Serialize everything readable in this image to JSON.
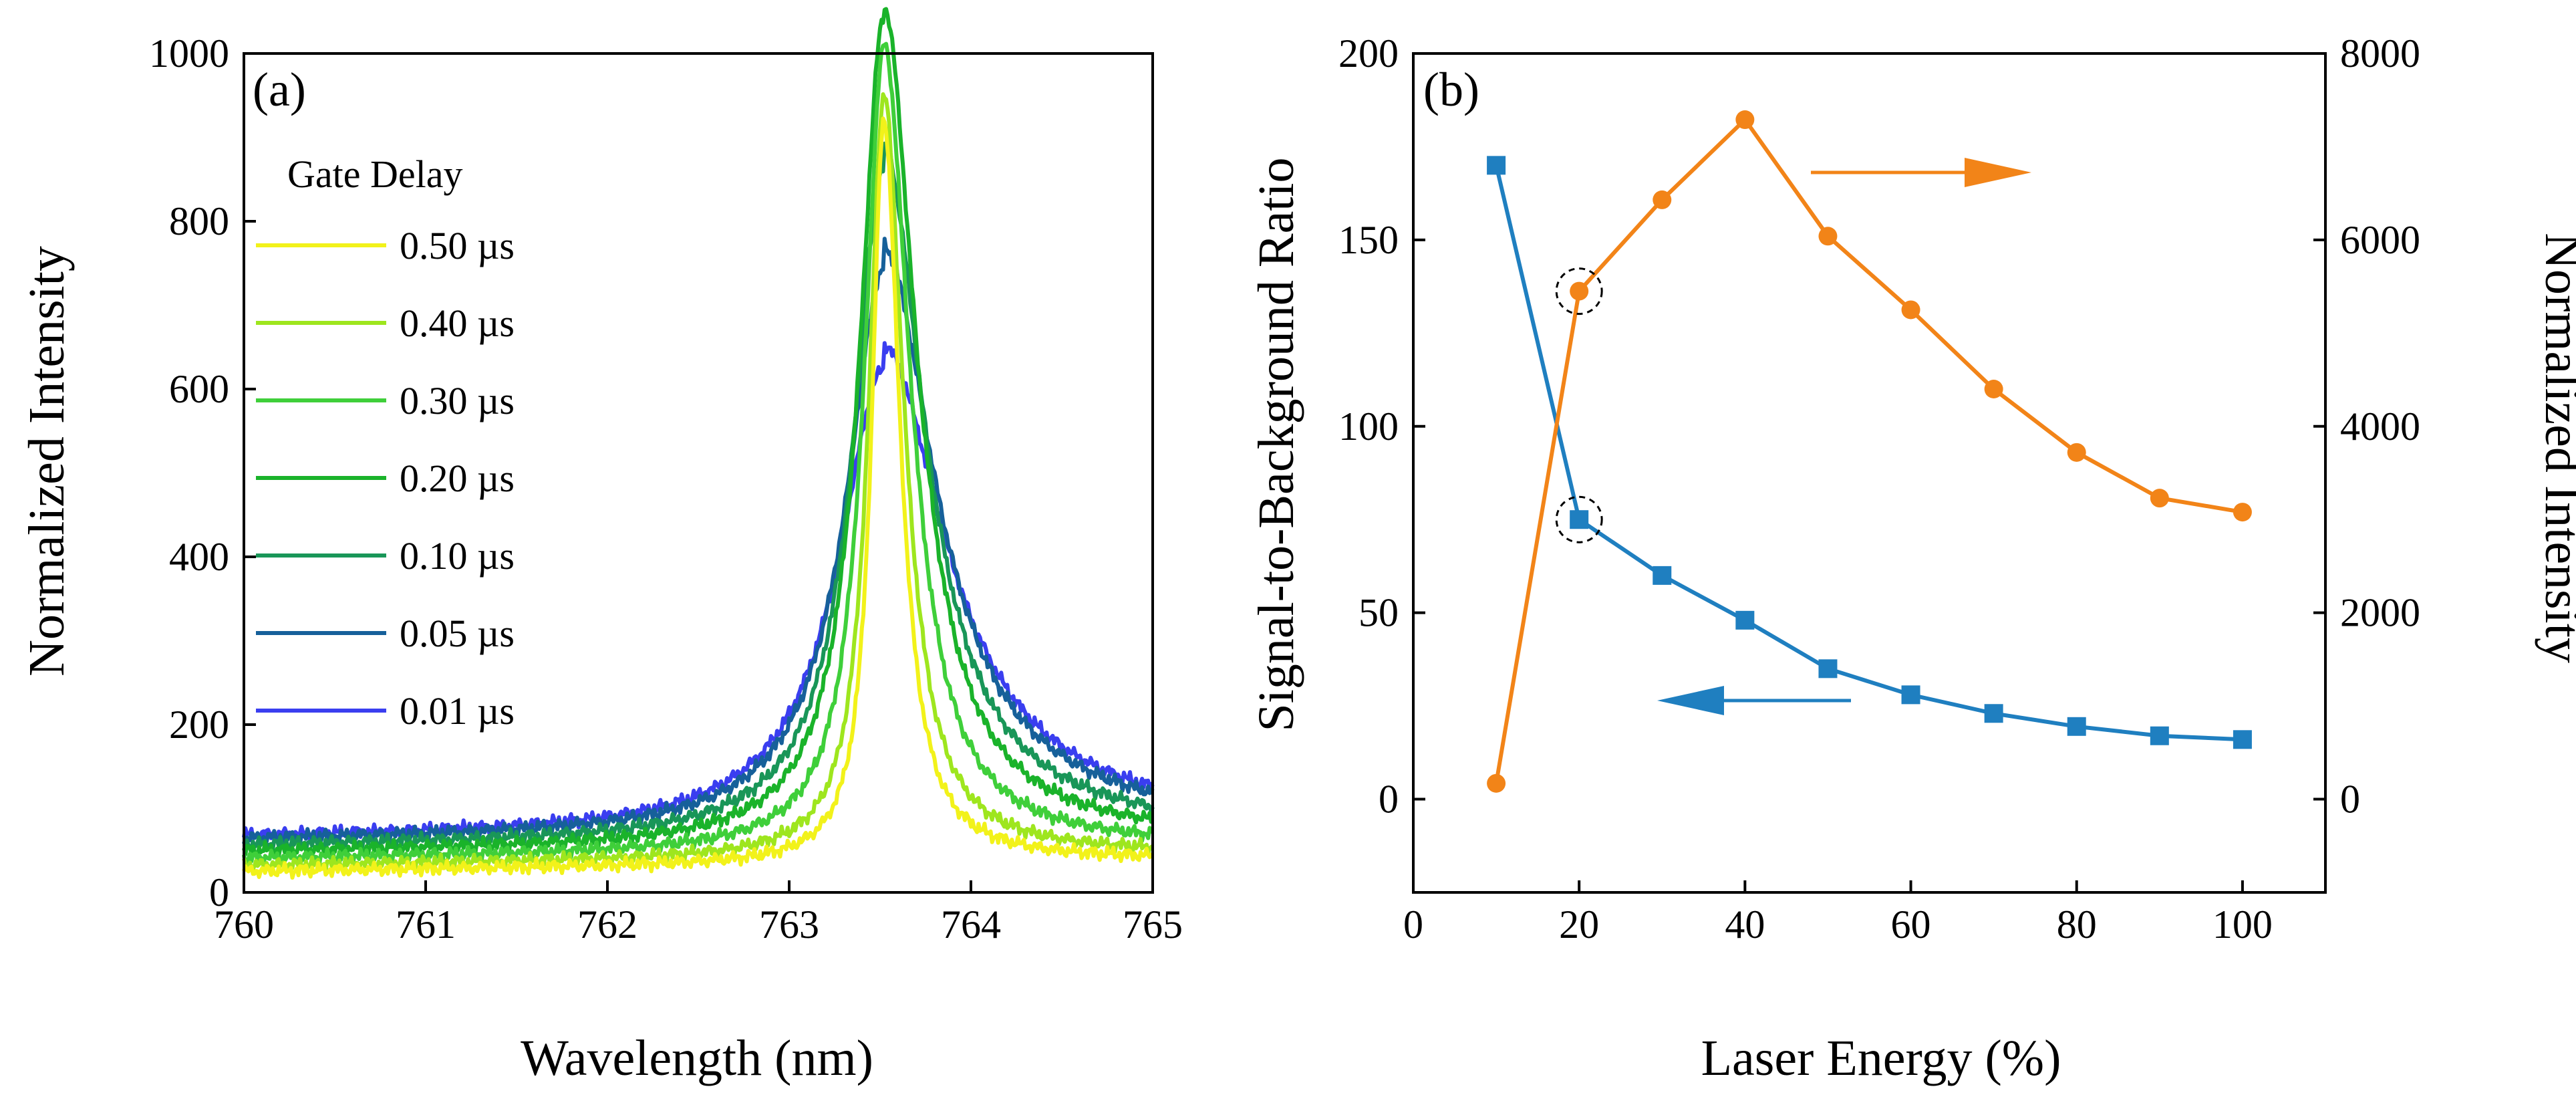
{
  "chart_data": [
    {
      "panel_label": "(a)",
      "type": "line",
      "xlabel": "Wavelength (nm)",
      "ylabel": "Normalized Intensity",
      "xlim": [
        760,
        765
      ],
      "ylim": [
        0,
        1000
      ],
      "xticks": [
        760,
        761,
        762,
        763,
        764,
        765
      ],
      "yticks": [
        0,
        200,
        400,
        600,
        800,
        1000
      ],
      "legend_title": "Gate Delay",
      "legend_position": "upper-left",
      "peak_x": 763.52,
      "series": [
        {
          "name": "0.50 µs",
          "color": "#f2f21a",
          "baseline": 25,
          "peak": 880,
          "width": 0.08,
          "tail": 10
        },
        {
          "name": "0.40 µs",
          "color": "#9ee61e",
          "baseline": 32,
          "peak": 900,
          "width": 0.1,
          "tail": 12
        },
        {
          "name": "0.30 µs",
          "color": "#3fcf3a",
          "baseline": 40,
          "peak": 945,
          "width": 0.13,
          "tail": 20
        },
        {
          "name": "0.20 µs",
          "color": "#1ab32a",
          "baseline": 48,
          "peak": 965,
          "width": 0.16,
          "tail": 35
        },
        {
          "name": "0.10 µs",
          "color": "#199658",
          "baseline": 55,
          "peak": 770,
          "width": 0.2,
          "tail": 55
        },
        {
          "name": "0.05 µs",
          "color": "#16609a",
          "baseline": 62,
          "peak": 630,
          "width": 0.25,
          "tail": 70
        },
        {
          "name": "0.01 µs",
          "color": "#3a3ef0",
          "baseline": 65,
          "peak": 510,
          "width": 0.3,
          "tail": 70
        }
      ]
    },
    {
      "panel_label": "(b)",
      "type": "line",
      "xlabel": "Laser Energy (%)",
      "ylabel_left": "Signal-to-Background Ratio",
      "ylabel_right": "Normalized Intensity",
      "xlim": [
        0,
        110
      ],
      "ylim_left": [
        -25,
        200
      ],
      "ylim_right": [
        -1000,
        8000
      ],
      "xticks": [
        0,
        20,
        40,
        60,
        80,
        100
      ],
      "yticks_left": [
        0,
        50,
        100,
        150,
        200
      ],
      "yticks_right": [
        0,
        2000,
        4000,
        6000,
        8000
      ],
      "x": [
        10,
        20,
        30,
        40,
        50,
        60,
        70,
        80,
        90,
        100
      ],
      "series": [
        {
          "axis": "left",
          "color": "#1f7fc0",
          "marker": "square",
          "values": [
            170,
            75,
            60,
            48,
            35,
            28,
            23,
            19.5,
            17,
            16
          ]
        },
        {
          "axis": "right",
          "color": "#f28418",
          "marker": "circle",
          "values": [
            170,
            5450,
            6430,
            7290,
            6040,
            5250,
            4400,
            3720,
            3230,
            3080
          ]
        }
      ],
      "highlight_x": 20,
      "arrows": [
        {
          "direction": "right",
          "color": "#f28418"
        },
        {
          "direction": "left",
          "color": "#1f7fc0"
        }
      ]
    }
  ]
}
